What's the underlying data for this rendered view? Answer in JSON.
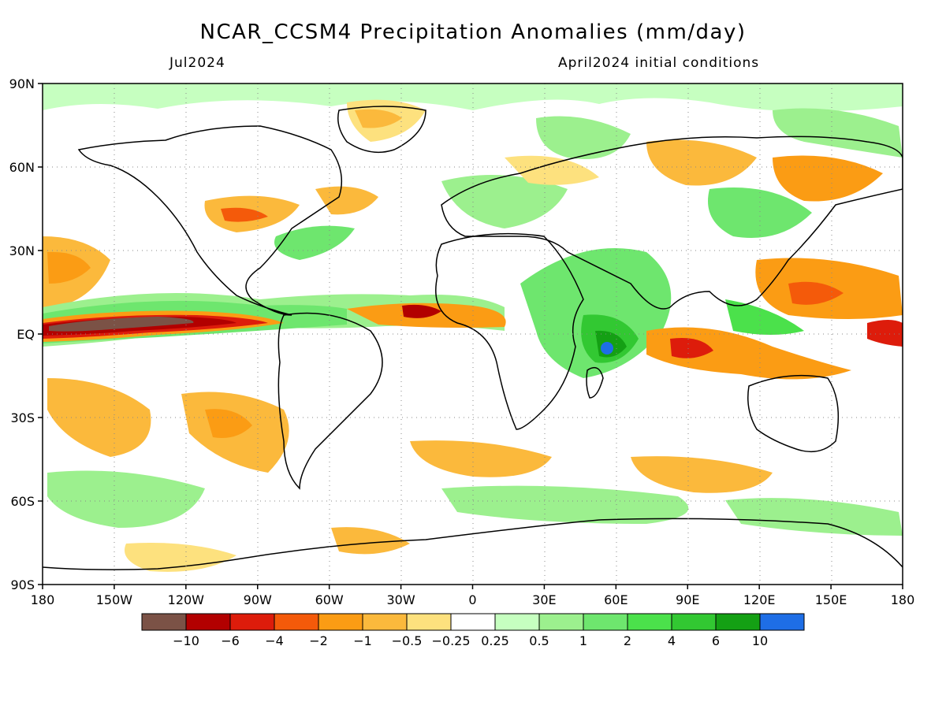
{
  "header": {
    "title": "NCAR_CCSM4 Precipitation Anomalies (mm/day)",
    "valid_month": "Jul2024",
    "init": "April2024 initial conditions"
  },
  "axes": {
    "lat_labels": [
      "90N",
      "60N",
      "30N",
      "EQ",
      "30S",
      "60S",
      "90S"
    ],
    "lon_labels": [
      "180",
      "150W",
      "120W",
      "90W",
      "60W",
      "30W",
      "0",
      "30E",
      "60E",
      "90E",
      "120E",
      "150E",
      "180"
    ]
  },
  "colorbar": {
    "colors": [
      "#7b5246",
      "#b20000",
      "#dd1c0b",
      "#f45a0a",
      "#fb9c14",
      "#fbb93c",
      "#fde17e",
      "#ffffff",
      "#c6ffc0",
      "#9cf08e",
      "#6ee66e",
      "#4be14b",
      "#32c832",
      "#14a014",
      "#1e6ee6"
    ],
    "labels": [
      "−10",
      "−6",
      "−4",
      "−2",
      "−1",
      "−0.5",
      "−0.25",
      "0.25",
      "0.5",
      "1",
      "2",
      "4",
      "6",
      "10"
    ]
  }
}
